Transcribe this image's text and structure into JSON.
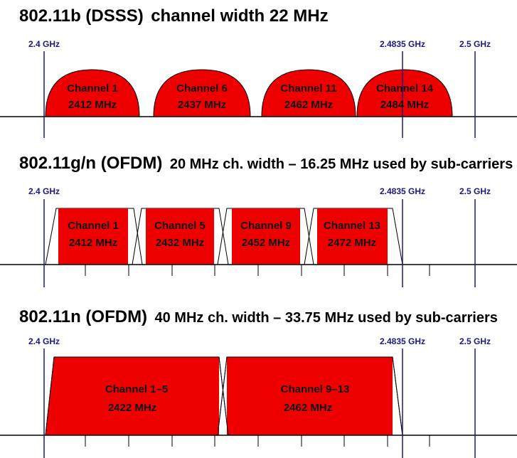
{
  "sections": [
    {
      "title_bold": "802.11b (DSSS)",
      "title_rest": "channel width 22 MHz",
      "markers": [
        "2.4 GHz",
        "2.4835 GHz",
        "2.5 GHz"
      ],
      "channels": [
        {
          "name": "Channel 1",
          "freq": "2412 MHz"
        },
        {
          "name": "Channel 6",
          "freq": "2437 MHz"
        },
        {
          "name": "Channel 11",
          "freq": "2462 MHz"
        },
        {
          "name": "Channel 14",
          "freq": "2484 MHz"
        }
      ]
    },
    {
      "title_bold": "802.11g/n (OFDM)",
      "title_rest": "20 MHz ch. width – 16.25 MHz used by sub-carriers",
      "markers": [
        "2.4 GHz",
        "2.4835 GHz",
        "2.5 GHz"
      ],
      "channels": [
        {
          "name": "Channel 1",
          "freq": "2412 MHz"
        },
        {
          "name": "Channel 5",
          "freq": "2432 MHz"
        },
        {
          "name": "Channel 9",
          "freq": "2452 MHz"
        },
        {
          "name": "Channel 13",
          "freq": "2472 MHz"
        }
      ]
    },
    {
      "title_bold": "802.11n (OFDM)",
      "title_rest": "40 MHz ch. width – 33.75 MHz used by sub-carriers",
      "markers": [
        "2.4 GHz",
        "2.4835 GHz",
        "2.5 GHz"
      ],
      "channels": [
        {
          "name": "Channel 1–5",
          "freq": "2422 MHz"
        },
        {
          "name": "Channel 9–13",
          "freq": "2462 MHz"
        }
      ]
    }
  ],
  "colors": {
    "channel_fill": "#ee0000",
    "marker_line": "#1a1a80",
    "axis": "#000000"
  }
}
